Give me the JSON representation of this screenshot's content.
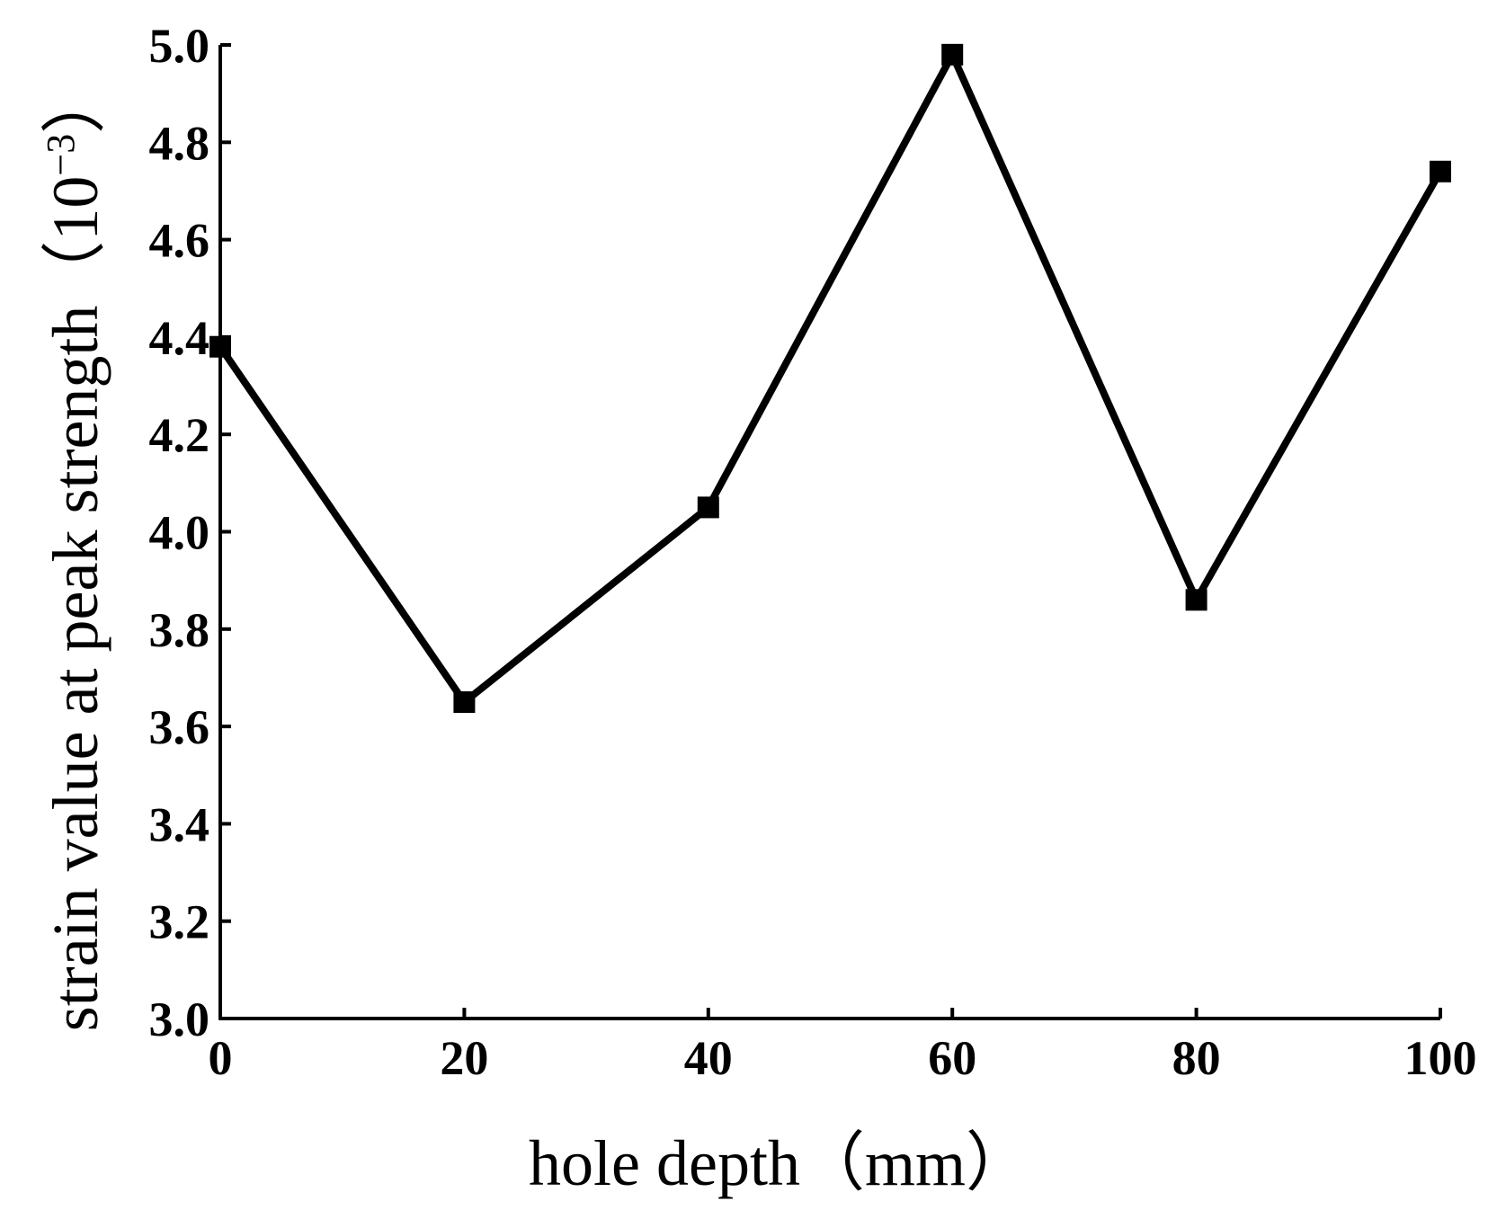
{
  "chart_data": {
    "type": "line",
    "x": [
      0,
      20,
      40,
      60,
      80,
      100
    ],
    "series": [
      {
        "values": [
          4.38,
          3.65,
          4.05,
          4.98,
          3.86,
          4.74
        ]
      }
    ],
    "xlabel": "hole depth（mm）",
    "ylabel_text": "strain value at peak strength（10",
    "ylabel_sup": "−3",
    "ylabel_close": "）",
    "xlim": [
      0,
      100
    ],
    "ylim": [
      3.0,
      5.0
    ],
    "x_ticks": [
      "0",
      "20",
      "40",
      "60",
      "80",
      "100"
    ],
    "y_ticks": [
      "3.0",
      "3.2",
      "3.4",
      "3.6",
      "3.8",
      "4.0",
      "4.2",
      "4.4",
      "4.6",
      "4.8",
      "5.0"
    ],
    "grid": false,
    "marker": "square",
    "line_color": "#000000"
  }
}
